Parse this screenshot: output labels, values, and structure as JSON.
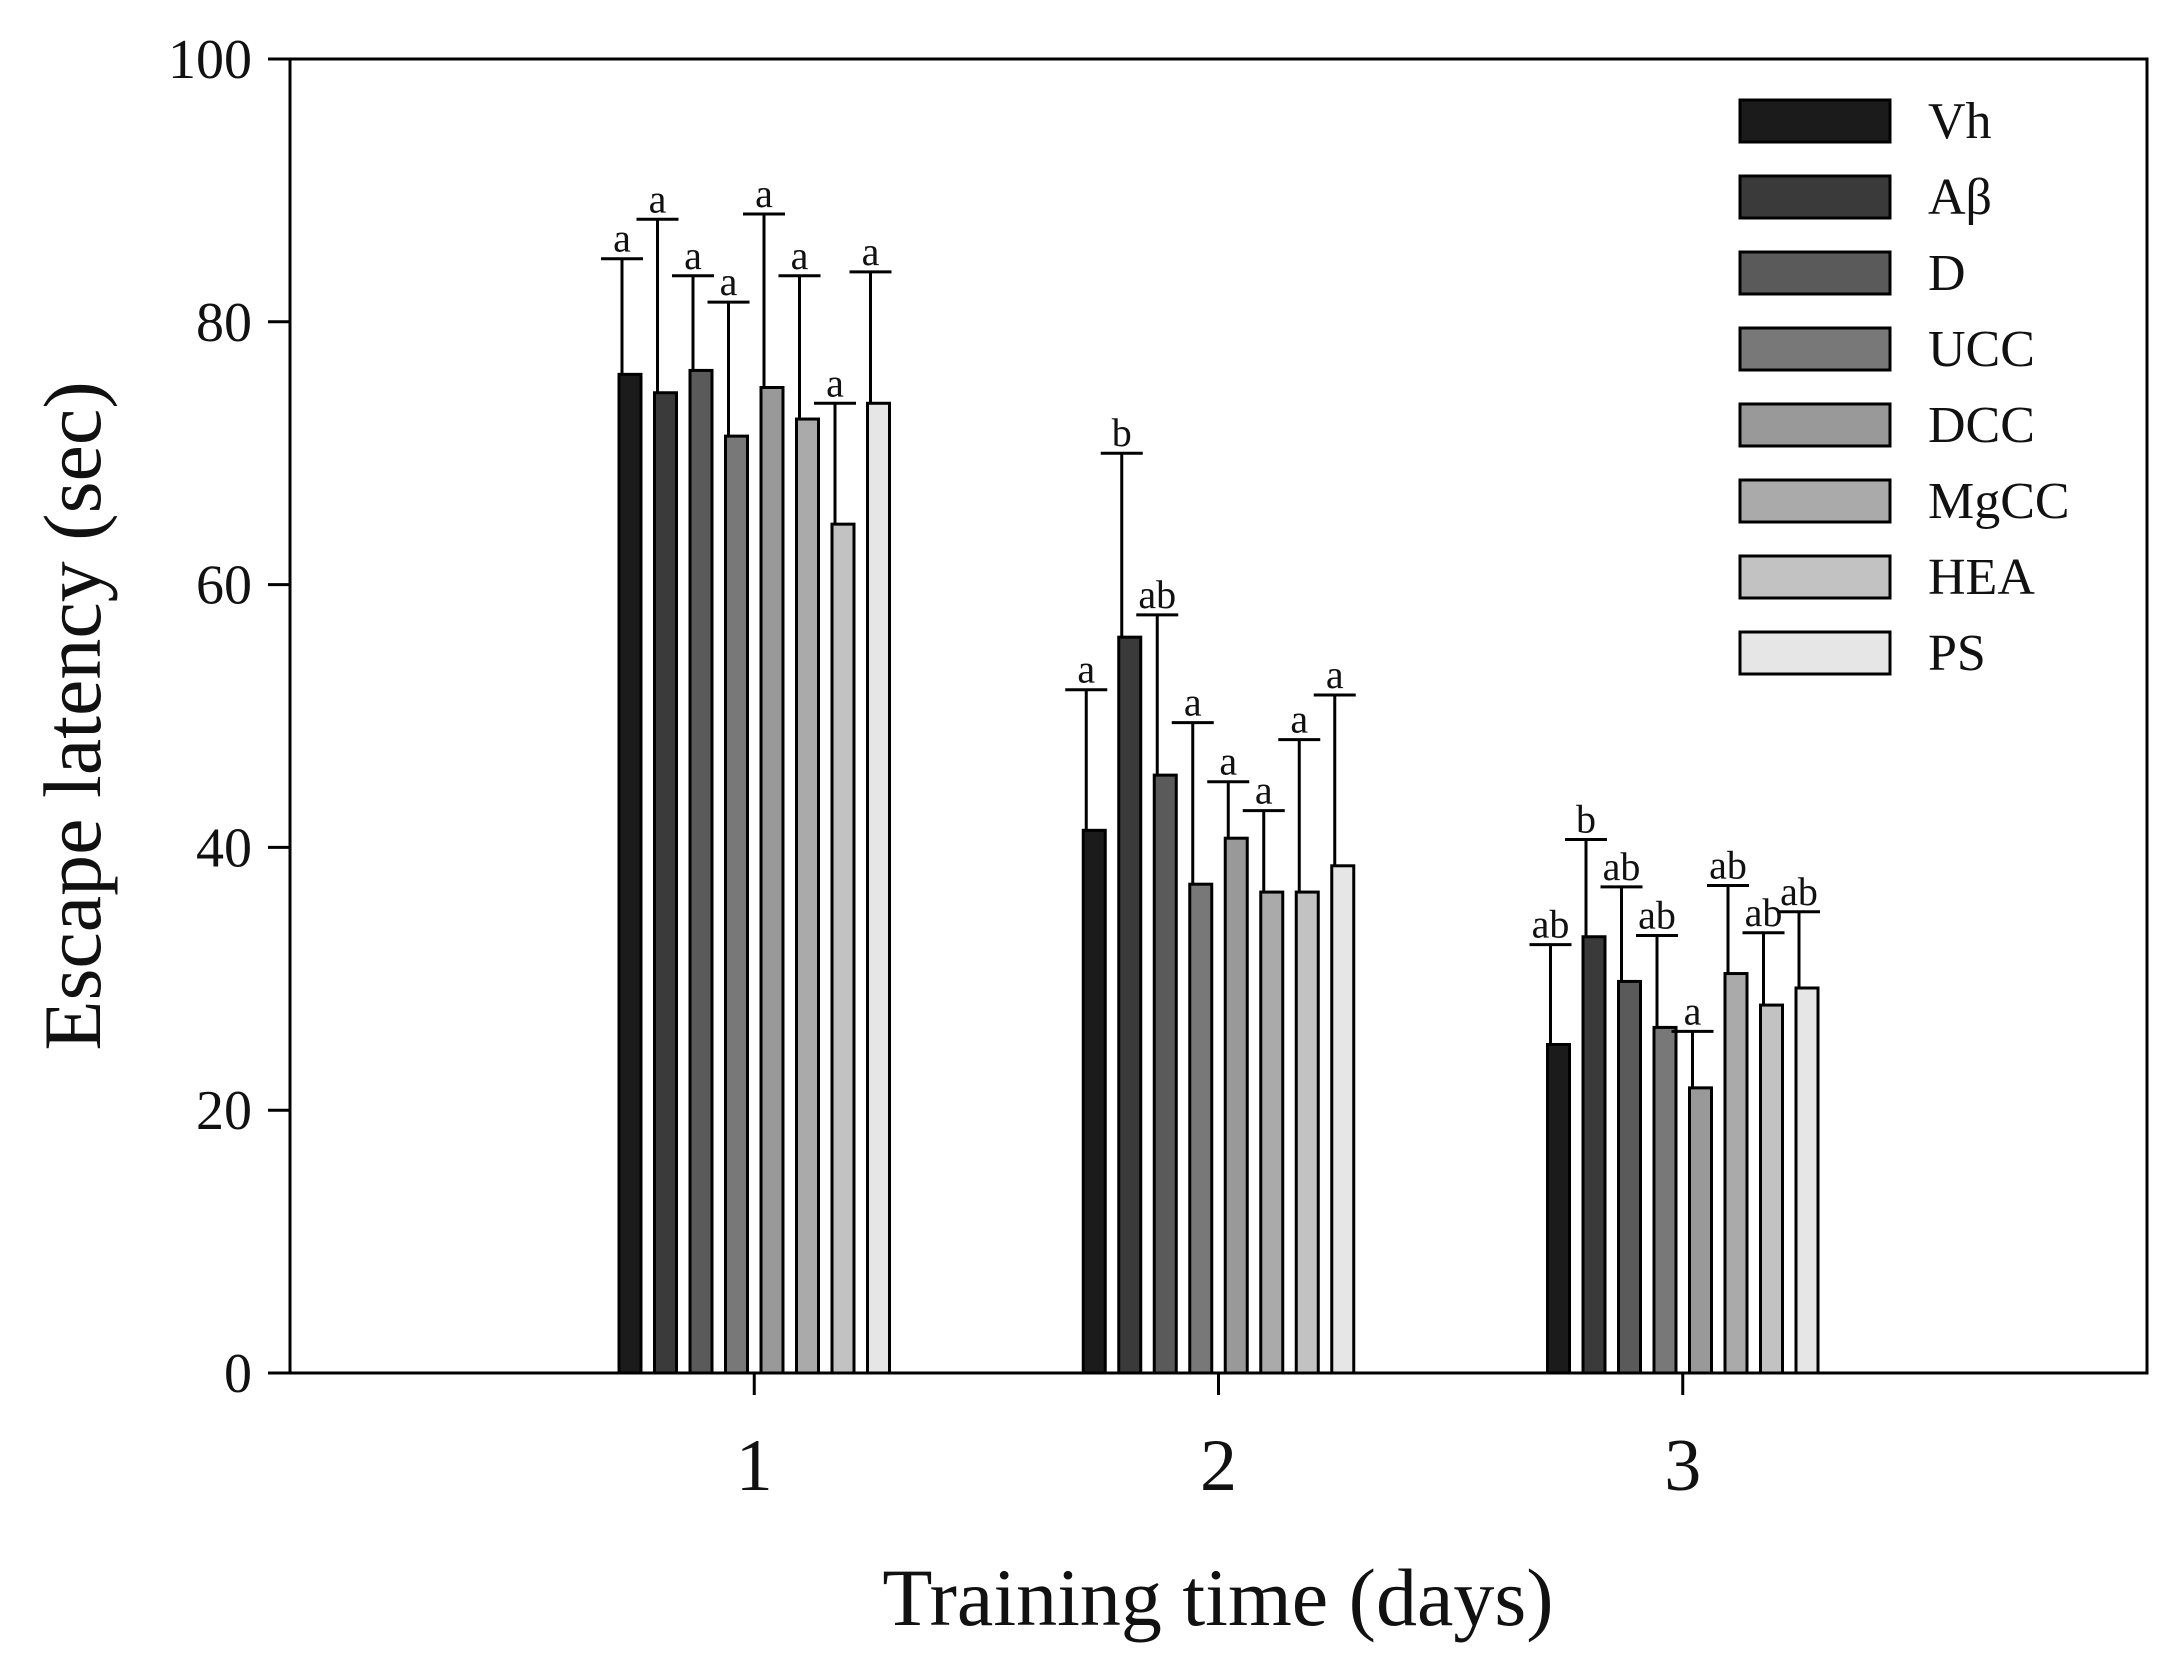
{
  "chart_data": {
    "type": "bar",
    "title": "",
    "xlabel": "Training time (days)",
    "ylabel": "Escape latency (sec)",
    "ylim": [
      0,
      100
    ],
    "yticks": [
      0,
      20,
      40,
      60,
      80,
      100
    ],
    "categories": [
      "1",
      "2",
      "3"
    ],
    "grid": false,
    "legend_position": "top-right",
    "colors": {
      "Vh": "#1b1b1b",
      "Aβ": "#3a3a3a",
      "D": "#5a5a5a",
      "UCC": "#787878",
      "DCC": "#999999",
      "MgCC": "#aaaaaa",
      "HEA": "#c2c2c2",
      "PS": "#e6e6e6"
    },
    "series": [
      {
        "name": "Vh",
        "values": [
          76,
          41.3,
          25
        ],
        "errors": [
          8.8,
          10.7,
          7.6
        ],
        "labels": [
          "a",
          "a",
          "ab"
        ]
      },
      {
        "name": "Aβ",
        "values": [
          74.6,
          56,
          33.2
        ],
        "errors": [
          13.2,
          14,
          7.4
        ],
        "labels": [
          "a",
          "b",
          "b"
        ]
      },
      {
        "name": "D",
        "values": [
          76.3,
          45.5,
          29.8
        ],
        "errors": [
          7.2,
          12.2,
          7.2
        ],
        "labels": [
          "a",
          "ab",
          "ab"
        ]
      },
      {
        "name": "UCC",
        "values": [
          71.3,
          37.2,
          26.3
        ],
        "errors": [
          10.2,
          12.3,
          7
        ],
        "labels": [
          "a",
          "a",
          "ab"
        ]
      },
      {
        "name": "DCC",
        "values": [
          75,
          40.7,
          21.7
        ],
        "errors": [
          13.2,
          4.3,
          4.3
        ],
        "labels": [
          "a",
          "a",
          "a"
        ]
      },
      {
        "name": "MgCC",
        "values": [
          72.6,
          36.6,
          30.4
        ],
        "errors": [
          10.9,
          6.2,
          6.7
        ],
        "labels": [
          "a",
          "a",
          "ab"
        ]
      },
      {
        "name": "HEA",
        "values": [
          64.6,
          36.6,
          28
        ],
        "errors": [
          9.2,
          11.6,
          5.5
        ],
        "labels": [
          "a",
          "a",
          "ab"
        ]
      },
      {
        "name": "PS",
        "values": [
          73.8,
          38.6,
          29.3
        ],
        "errors": [
          10,
          13,
          5.8
        ],
        "labels": [
          "a",
          "a",
          "ab"
        ]
      }
    ]
  }
}
